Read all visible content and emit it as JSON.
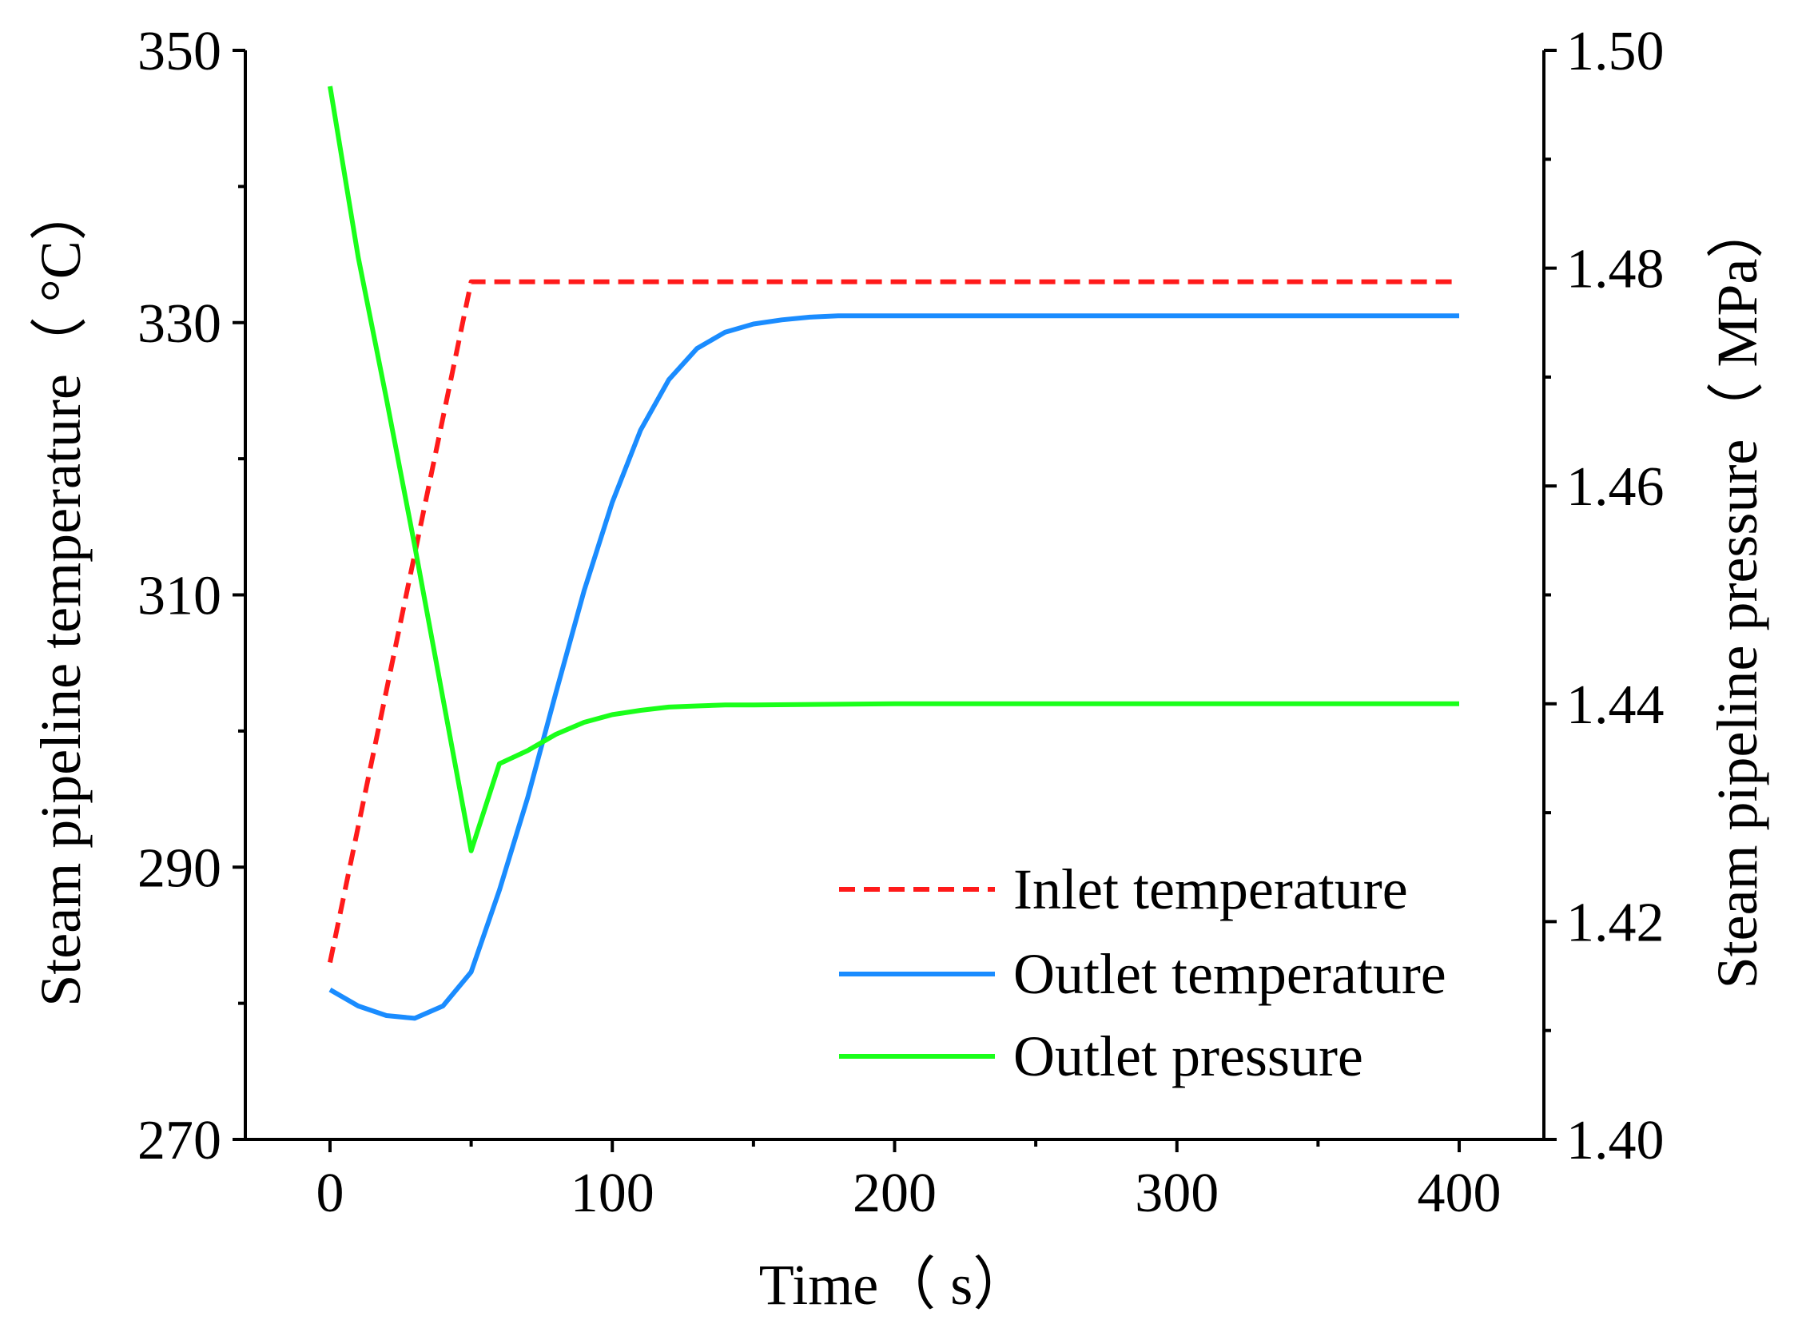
{
  "chart_data": {
    "type": "line",
    "title": "",
    "xlabel": "Time（ s）",
    "ylabel_left": "Steam pipeline temperature（ °C）",
    "ylabel_right": "Steam pipeline pressure（ MPa）",
    "xlim": [
      -30,
      430
    ],
    "ylim_left": [
      270,
      350
    ],
    "ylim_right": [
      1.4,
      1.5
    ],
    "x_ticks": [
      0,
      100,
      200,
      300,
      400
    ],
    "x_tick_labels": [
      "0",
      "100",
      "200",
      "300",
      "400"
    ],
    "y_left_ticks": [
      270,
      290,
      310,
      330,
      350
    ],
    "y_left_tick_labels": [
      "270",
      "290",
      "310",
      "330",
      "350"
    ],
    "y_right_ticks": [
      1.4,
      1.42,
      1.44,
      1.46,
      1.48,
      1.5
    ],
    "y_right_tick_labels": [
      "1.40",
      "1.42",
      "1.44",
      "1.46",
      "1.48",
      "1.50"
    ],
    "grid": false,
    "legend_position": "lower-right",
    "series": [
      {
        "name": "Inlet temperature",
        "axis": "left",
        "color": "#ff1a1a",
        "style": "dashed",
        "x": [
          0,
          50,
          100,
          200,
          300,
          400
        ],
        "y": [
          283,
          333,
          333,
          333,
          333,
          333
        ]
      },
      {
        "name": "Outlet temperature",
        "axis": "left",
        "color": "#1a8cff",
        "style": "solid",
        "x": [
          0,
          10,
          20,
          30,
          40,
          50,
          60,
          70,
          80,
          90,
          100,
          110,
          120,
          130,
          140,
          150,
          160,
          170,
          180,
          200,
          250,
          300,
          350,
          400
        ],
        "y": [
          281,
          279.8,
          279.1,
          278.9,
          279.8,
          282.3,
          288.3,
          295.1,
          302.8,
          310.3,
          316.8,
          322.1,
          325.8,
          328.1,
          329.3,
          329.9,
          330.2,
          330.4,
          330.5,
          330.5,
          330.5,
          330.5,
          330.5,
          330.5
        ]
      },
      {
        "name": "Outlet pressure",
        "axis": "right",
        "color": "#1aff1a",
        "style": "solid",
        "x": [
          0,
          10,
          20,
          30,
          40,
          50,
          60,
          70,
          80,
          90,
          100,
          110,
          120,
          130,
          140,
          150,
          200,
          250,
          300,
          350,
          400
        ],
        "y": [
          1.4967,
          1.481,
          1.468,
          1.4545,
          1.4405,
          1.4265,
          1.4345,
          1.4357,
          1.4372,
          1.4383,
          1.439,
          1.4394,
          1.4397,
          1.4398,
          1.4399,
          1.4399,
          1.44,
          1.44,
          1.44,
          1.44,
          1.44
        ]
      }
    ]
  }
}
